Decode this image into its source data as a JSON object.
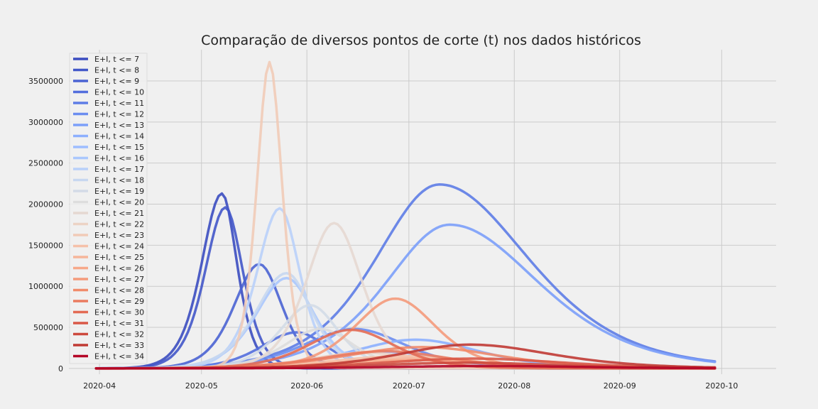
{
  "chart_data": {
    "type": "line",
    "title": "Comparação de diversos pontos de corte (t) nos dados históricos",
    "xlabel": "",
    "ylabel": "",
    "x_ticks": [
      "2020-04",
      "2020-05",
      "2020-06",
      "2020-07",
      "2020-08",
      "2020-09",
      "2020-10"
    ],
    "y_ticks": [
      "0",
      "500000",
      "1000000",
      "1500000",
      "2000000",
      "2500000",
      "3000000",
      "3500000"
    ],
    "xlim": [
      "2020-03-23",
      "2020-10-17"
    ],
    "ylim": [
      -70000,
      3880000
    ],
    "grid": true,
    "legend_position": "top-left",
    "x_start": "2020-03-31",
    "x_end": "2020-09-29",
    "series": [
      {
        "name": "E+I, t <= 7",
        "color": "#3b4cc0",
        "peak_date": "2020-05-07",
        "peak": 2130000,
        "rise_days": 8,
        "fall_days": 6
      },
      {
        "name": "E+I, t <= 8",
        "color": "#4257c9",
        "peak_date": "2020-05-08",
        "peak": 1960000,
        "rise_days": 8,
        "fall_days": 7
      },
      {
        "name": "E+I, t <= 9",
        "color": "#4a63d3",
        "peak_date": "2020-05-18",
        "peak": 1270000,
        "rise_days": 10,
        "fall_days": 9
      },
      {
        "name": "E+I, t <= 10",
        "color": "#536edd",
        "peak_date": "2020-05-29",
        "peak": 440000,
        "rise_days": 14,
        "fall_days": 12
      },
      {
        "name": "E+I, t <= 11",
        "color": "#5d7ce6",
        "peak_date": "2020-07-10",
        "peak": 2240000,
        "rise_days": 25,
        "fall_days": 35
      },
      {
        "name": "E+I, t <= 12",
        "color": "#6b8df0",
        "peak_date": "2020-06-15",
        "peak": 480000,
        "rise_days": 20,
        "fall_days": 20
      },
      {
        "name": "E+I, t <= 13",
        "color": "#7b9ff9",
        "peak_date": "2020-07-13",
        "peak": 1750000,
        "rise_days": 25,
        "fall_days": 35
      },
      {
        "name": "E+I, t <= 14",
        "color": "#8caffe",
        "peak_date": "2020-07-03",
        "peak": 350000,
        "rise_days": 25,
        "fall_days": 25
      },
      {
        "name": "E+I, t <= 15",
        "color": "#9dbdff",
        "peak_date": "2020-06-24",
        "peak": 200000,
        "rise_days": 25,
        "fall_days": 25
      },
      {
        "name": "E+I, t <= 16",
        "color": "#aac7fd",
        "peak_date": "2020-05-26",
        "peak": 1100000,
        "rise_days": 12,
        "fall_days": 11
      },
      {
        "name": "E+I, t <= 17",
        "color": "#b9d0f9",
        "peak_date": "2020-05-24",
        "peak": 1950000,
        "rise_days": 9,
        "fall_days": 8
      },
      {
        "name": "E+I, t <= 18",
        "color": "#c7d7f0",
        "peak_date": "2020-05-26",
        "peak": 1160000,
        "rise_days": 12,
        "fall_days": 10
      },
      {
        "name": "E+I, t <= 19",
        "color": "#d3dbe7",
        "peak_date": "2020-06-02",
        "peak": 770000,
        "rise_days": 12,
        "fall_days": 11
      },
      {
        "name": "E+I, t <= 20",
        "color": "#dddddd",
        "peak_date": "2020-06-05",
        "peak": 480000,
        "rise_days": 14,
        "fall_days": 13
      },
      {
        "name": "E+I, t <= 21",
        "color": "#e5d8d1",
        "peak_date": "2020-06-09",
        "peak": 1770000,
        "rise_days": 11,
        "fall_days": 11
      },
      {
        "name": "E+I, t <= 22",
        "color": "#ecd3c5",
        "peak_date": "2020-06-18",
        "peak": 190000,
        "rise_days": 22,
        "fall_days": 22
      },
      {
        "name": "E+I, t <= 23",
        "color": "#f1cbb7",
        "peak_date": "2020-05-21",
        "peak": 3730000,
        "rise_days": 5,
        "fall_days": 5
      },
      {
        "name": "E+I, t <= 24",
        "color": "#f5c1a9",
        "peak_date": "2020-06-29",
        "peak": 150000,
        "rise_days": 28,
        "fall_days": 28
      },
      {
        "name": "E+I, t <= 25",
        "color": "#f6b69a",
        "peak_date": "2020-06-30",
        "peak": 120000,
        "rise_days": 28,
        "fall_days": 30
      },
      {
        "name": "E+I, t <= 26",
        "color": "#f7a889",
        "peak_date": "2020-07-02",
        "peak": 100000,
        "rise_days": 30,
        "fall_days": 30
      },
      {
        "name": "E+I, t <= 27",
        "color": "#f49a7b",
        "peak_date": "2020-06-27",
        "peak": 850000,
        "rise_days": 16,
        "fall_days": 16
      },
      {
        "name": "E+I, t <= 28",
        "color": "#f18b6b",
        "peak_date": "2020-07-05",
        "peak": 260000,
        "rise_days": 30,
        "fall_days": 30
      },
      {
        "name": "E+I, t <= 29",
        "color": "#ea7b60",
        "peak_date": "2020-06-24",
        "peak": 210000,
        "rise_days": 25,
        "fall_days": 25
      },
      {
        "name": "E+I, t <= 30",
        "color": "#e36b54",
        "peak_date": "2020-06-14",
        "peak": 470000,
        "rise_days": 17,
        "fall_days": 17
      },
      {
        "name": "E+I, t <= 31",
        "color": "#d95847",
        "peak_date": "2020-07-20",
        "peak": 120000,
        "rise_days": 35,
        "fall_days": 35
      },
      {
        "name": "E+I, t <= 32",
        "color": "#cd4a3e",
        "peak_date": "2020-07-18",
        "peak": 70000,
        "rise_days": 35,
        "fall_days": 35
      },
      {
        "name": "E+I, t <= 33",
        "color": "#c03a34",
        "peak_date": "2020-07-19",
        "peak": 290000,
        "rise_days": 28,
        "fall_days": 32
      },
      {
        "name": "E+I, t <= 34",
        "color": "#b40426",
        "peak_date": "2020-07-24",
        "peak": 30000,
        "rise_days": 38,
        "fall_days": 38
      }
    ]
  }
}
